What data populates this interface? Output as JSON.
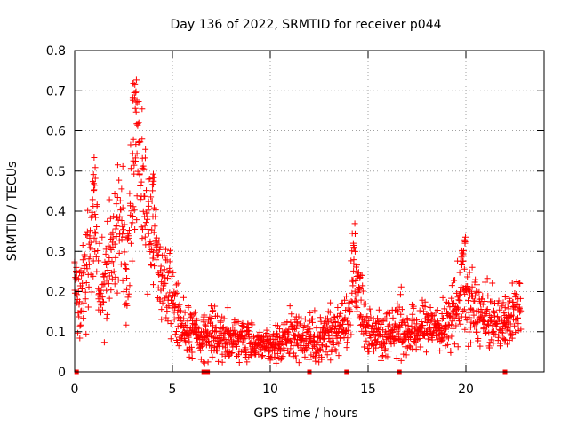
{
  "chart_data": {
    "type": "scatter",
    "title": "Day 136 of 2022, SRMTID for receiver p044",
    "xlabel": "GPS time / hours",
    "ylabel": "SRMTID / TECUs",
    "xlim": [
      0,
      24
    ],
    "ylim": [
      0,
      0.8
    ],
    "xticks": [
      0,
      5,
      10,
      15,
      20
    ],
    "yticks": [
      0,
      0.1,
      0.2,
      0.3,
      0.4,
      0.5,
      0.6,
      0.7,
      0.8
    ],
    "xtick_labels": [
      "0",
      "5",
      "10",
      "15",
      "20"
    ],
    "ytick_labels": [
      "0",
      "0.1",
      "0.2",
      "0.3",
      "0.4",
      "0.5",
      "0.6",
      "0.7",
      "0.8"
    ],
    "grid": true,
    "marker": "+",
    "color": "#ff0000",
    "envelope": {
      "description": "approximate center/spread of the SRMTID point cloud vs time",
      "x": [
        0.0,
        0.3,
        0.7,
        1.0,
        1.3,
        1.6,
        2.0,
        2.4,
        2.7,
        3.0,
        3.2,
        3.5,
        3.8,
        4.1,
        4.4,
        4.8,
        5.2,
        5.6,
        6.0,
        6.5,
        7.0,
        7.5,
        8.0,
        8.5,
        9.0,
        9.5,
        10.0,
        10.5,
        11.0,
        11.5,
        12.0,
        12.5,
        13.0,
        13.5,
        14.0,
        14.3,
        14.6,
        15.0,
        15.5,
        16.0,
        16.5,
        17.0,
        17.5,
        18.0,
        18.5,
        19.0,
        19.5,
        19.8,
        20.2,
        20.7,
        21.0,
        21.5,
        22.0,
        22.5,
        22.8
      ],
      "center": [
        0.2,
        0.17,
        0.28,
        0.38,
        0.22,
        0.27,
        0.32,
        0.36,
        0.26,
        0.45,
        0.62,
        0.42,
        0.38,
        0.36,
        0.22,
        0.2,
        0.15,
        0.11,
        0.1,
        0.08,
        0.1,
        0.09,
        0.09,
        0.08,
        0.08,
        0.07,
        0.06,
        0.07,
        0.09,
        0.09,
        0.08,
        0.08,
        0.1,
        0.1,
        0.15,
        0.25,
        0.18,
        0.1,
        0.1,
        0.09,
        0.12,
        0.1,
        0.1,
        0.12,
        0.11,
        0.11,
        0.16,
        0.22,
        0.16,
        0.15,
        0.13,
        0.12,
        0.12,
        0.15,
        0.18
      ],
      "spread": [
        0.05,
        0.04,
        0.08,
        0.08,
        0.06,
        0.07,
        0.08,
        0.08,
        0.08,
        0.1,
        0.09,
        0.08,
        0.08,
        0.07,
        0.06,
        0.05,
        0.04,
        0.03,
        0.03,
        0.03,
        0.03,
        0.03,
        0.03,
        0.03,
        0.03,
        0.02,
        0.02,
        0.02,
        0.03,
        0.03,
        0.03,
        0.03,
        0.03,
        0.03,
        0.04,
        0.07,
        0.05,
        0.03,
        0.03,
        0.03,
        0.04,
        0.03,
        0.03,
        0.03,
        0.03,
        0.03,
        0.05,
        0.06,
        0.05,
        0.04,
        0.04,
        0.03,
        0.03,
        0.04,
        0.04
      ],
      "density": 9
    },
    "peaks": [
      {
        "x": 1.0,
        "y": 0.51
      },
      {
        "x": 3.0,
        "y": 0.72
      },
      {
        "x": 3.1,
        "y": 0.7
      },
      {
        "x": 4.0,
        "y": 0.51
      },
      {
        "x": 14.3,
        "y": 0.37
      },
      {
        "x": 19.9,
        "y": 0.33
      }
    ],
    "zero_markers_x": [
      0.1,
      6.6,
      6.8,
      12.0,
      13.9,
      16.6,
      22.0
    ]
  }
}
